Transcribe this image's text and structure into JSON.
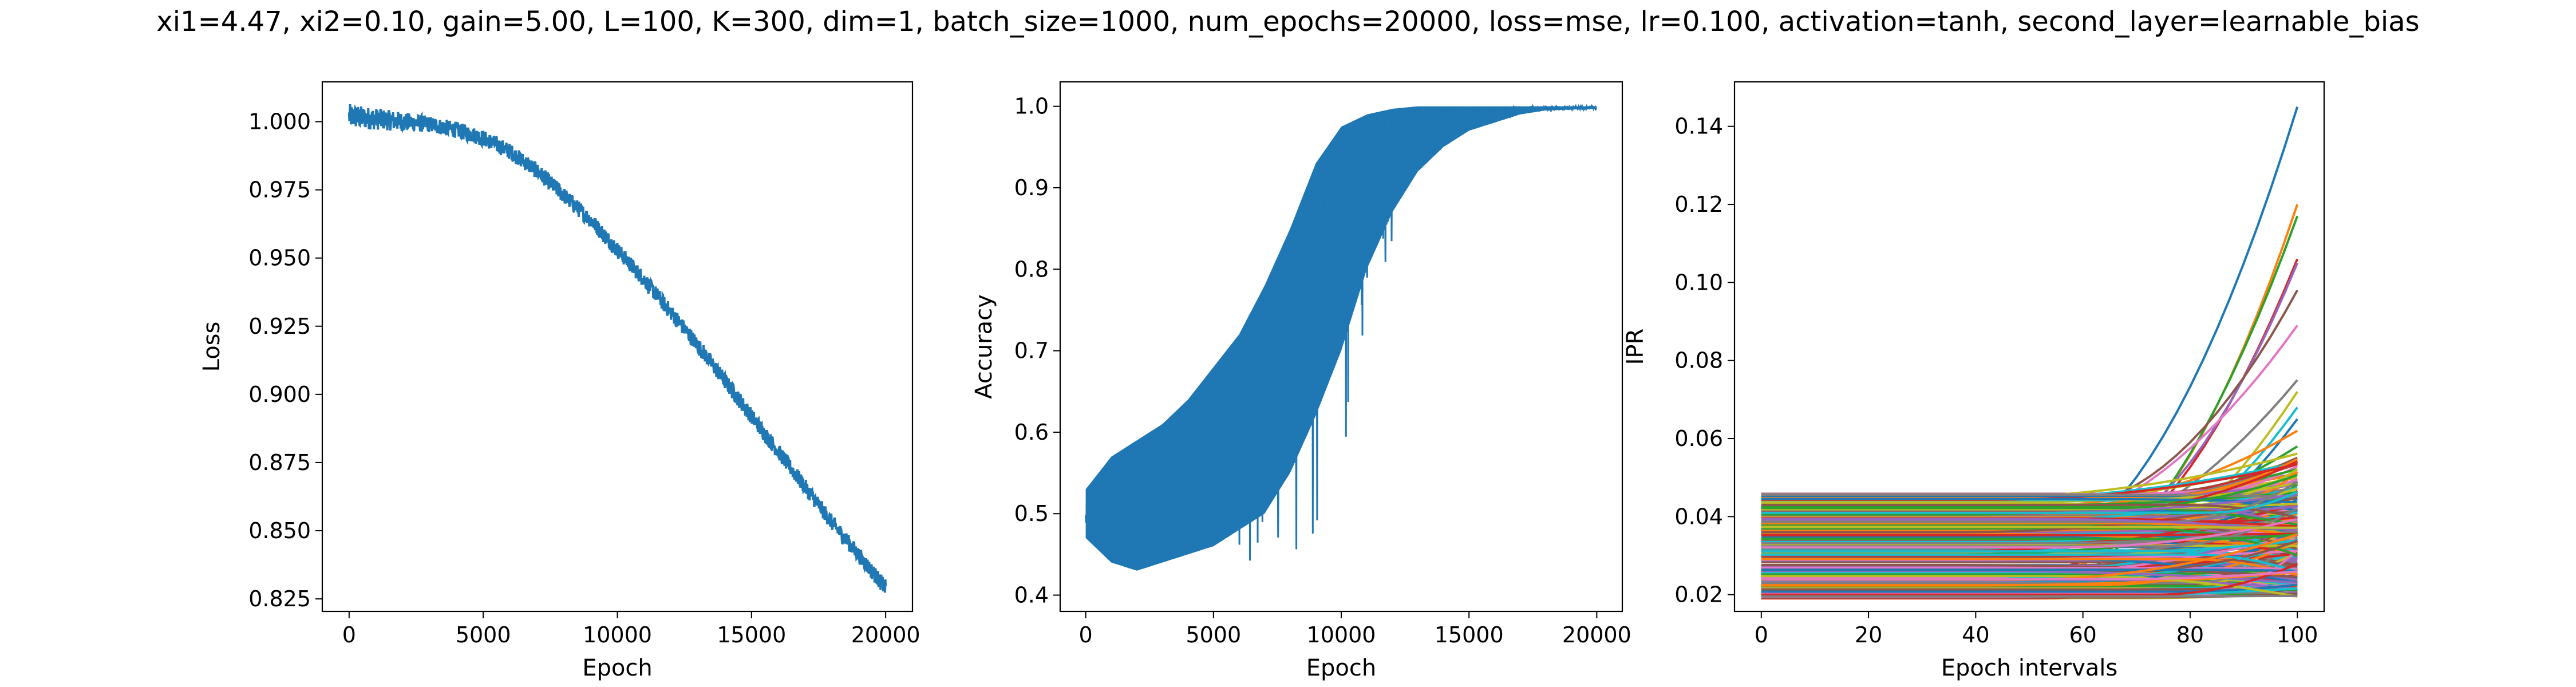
{
  "figure": {
    "title": "xi1=4.47, xi2=0.10, gain=5.00, L=100, K=300, dim=1, batch_size=1000, num_epochs=20000, loss=mse, lr=0.100, activation=tanh, second_layer=learnable_bias"
  },
  "chart_data": [
    {
      "type": "line",
      "xlabel": "Epoch",
      "ylabel": "Loss",
      "xlim": [
        -1000,
        21000
      ],
      "ylim": [
        0.8204,
        1.0146
      ],
      "xticks": [
        0,
        5000,
        10000,
        15000,
        20000
      ],
      "xtick_labels": [
        "0",
        "5000",
        "10000",
        "15000",
        "20000"
      ],
      "yticks": [
        0.825,
        0.85,
        0.875,
        0.9,
        0.925,
        0.95,
        0.975,
        1.0
      ],
      "ytick_labels": [
        "0.825",
        "0.850",
        "0.875",
        "0.900",
        "0.925",
        "0.950",
        "0.975",
        "1.000"
      ],
      "grid": false,
      "color": "#1f77b4",
      "series": [
        {
          "x": [
            0,
            1000,
            2000,
            3000,
            4000,
            5000,
            6000,
            7000,
            8000,
            9000,
            10000,
            11000,
            12000,
            13000,
            14000,
            15000,
            16000,
            17000,
            18000,
            19000,
            20000
          ],
          "y_center": [
            1.002,
            1.001,
            1.0,
            0.999,
            0.997,
            0.994,
            0.989,
            0.982,
            0.973,
            0.964,
            0.953,
            0.942,
            0.93,
            0.918,
            0.905,
            0.892,
            0.879,
            0.866,
            0.853,
            0.841,
            0.829
          ],
          "y_noise": [
            0.0045,
            0.004,
            0.0035,
            0.003,
            0.003,
            0.003,
            0.003,
            0.003,
            0.003,
            0.003,
            0.003,
            0.003,
            0.003,
            0.003,
            0.003,
            0.003,
            0.003,
            0.003,
            0.003,
            0.003,
            0.003
          ]
        }
      ]
    },
    {
      "type": "line",
      "xlabel": "Epoch",
      "ylabel": "Accuracy",
      "xlim": [
        -1000,
        21000
      ],
      "ylim": [
        0.38,
        1.03
      ],
      "xticks": [
        0,
        5000,
        10000,
        15000,
        20000
      ],
      "xtick_labels": [
        "0",
        "5000",
        "10000",
        "15000",
        "20000"
      ],
      "yticks": [
        0.4,
        0.5,
        0.6,
        0.7,
        0.8,
        0.9,
        1.0
      ],
      "ytick_labels": [
        "0.4",
        "0.5",
        "0.6",
        "0.7",
        "0.8",
        "0.9",
        "1.0"
      ],
      "grid": false,
      "color": "#1f77b4",
      "series": [
        {
          "x": [
            0,
            1000,
            2000,
            3000,
            4000,
            5000,
            6000,
            7000,
            8000,
            9000,
            10000,
            11000,
            12000,
            13000,
            14000,
            15000,
            16000,
            17000,
            18000,
            19000,
            20000
          ],
          "y_low": [
            0.47,
            0.44,
            0.43,
            0.44,
            0.45,
            0.46,
            0.48,
            0.5,
            0.55,
            0.62,
            0.7,
            0.8,
            0.87,
            0.92,
            0.95,
            0.97,
            0.98,
            0.99,
            0.995,
            0.996,
            0.997
          ],
          "y_high": [
            0.53,
            0.57,
            0.59,
            0.61,
            0.64,
            0.68,
            0.72,
            0.78,
            0.85,
            0.93,
            0.975,
            0.99,
            0.997,
            1.0,
            1.0,
            1.0,
            1.0,
            1.0,
            1.0,
            1.0,
            1.0
          ]
        }
      ]
    },
    {
      "type": "line",
      "xlabel": "Epoch intervals",
      "ylabel": "IPR",
      "xlim": [
        -5,
        105
      ],
      "ylim": [
        0.0157,
        0.1514
      ],
      "xticks": [
        0,
        20,
        40,
        60,
        80,
        100
      ],
      "xtick_labels": [
        "0",
        "20",
        "40",
        "60",
        "80",
        "100"
      ],
      "yticks": [
        0.02,
        0.04,
        0.06,
        0.08,
        0.1,
        0.12,
        0.14
      ],
      "ytick_labels": [
        "0.02",
        "0.04",
        "0.06",
        "0.08",
        "0.10",
        "0.12",
        "0.14"
      ],
      "grid": false,
      "series_count": 300,
      "x_range": [
        0,
        100
      ],
      "baseline_range": [
        0.019,
        0.046
      ],
      "highlighted_series_end_values": [
        0.145,
        0.12,
        0.117,
        0.106,
        0.105,
        0.098,
        0.089,
        0.075,
        0.072,
        0.068,
        0.065,
        0.062,
        0.058
      ],
      "palette": [
        "#1f77b4",
        "#ff7f0e",
        "#2ca02c",
        "#d62728",
        "#9467bd",
        "#8c564b",
        "#e377c2",
        "#7f7f7f",
        "#bcbd22",
        "#17becf"
      ]
    }
  ]
}
